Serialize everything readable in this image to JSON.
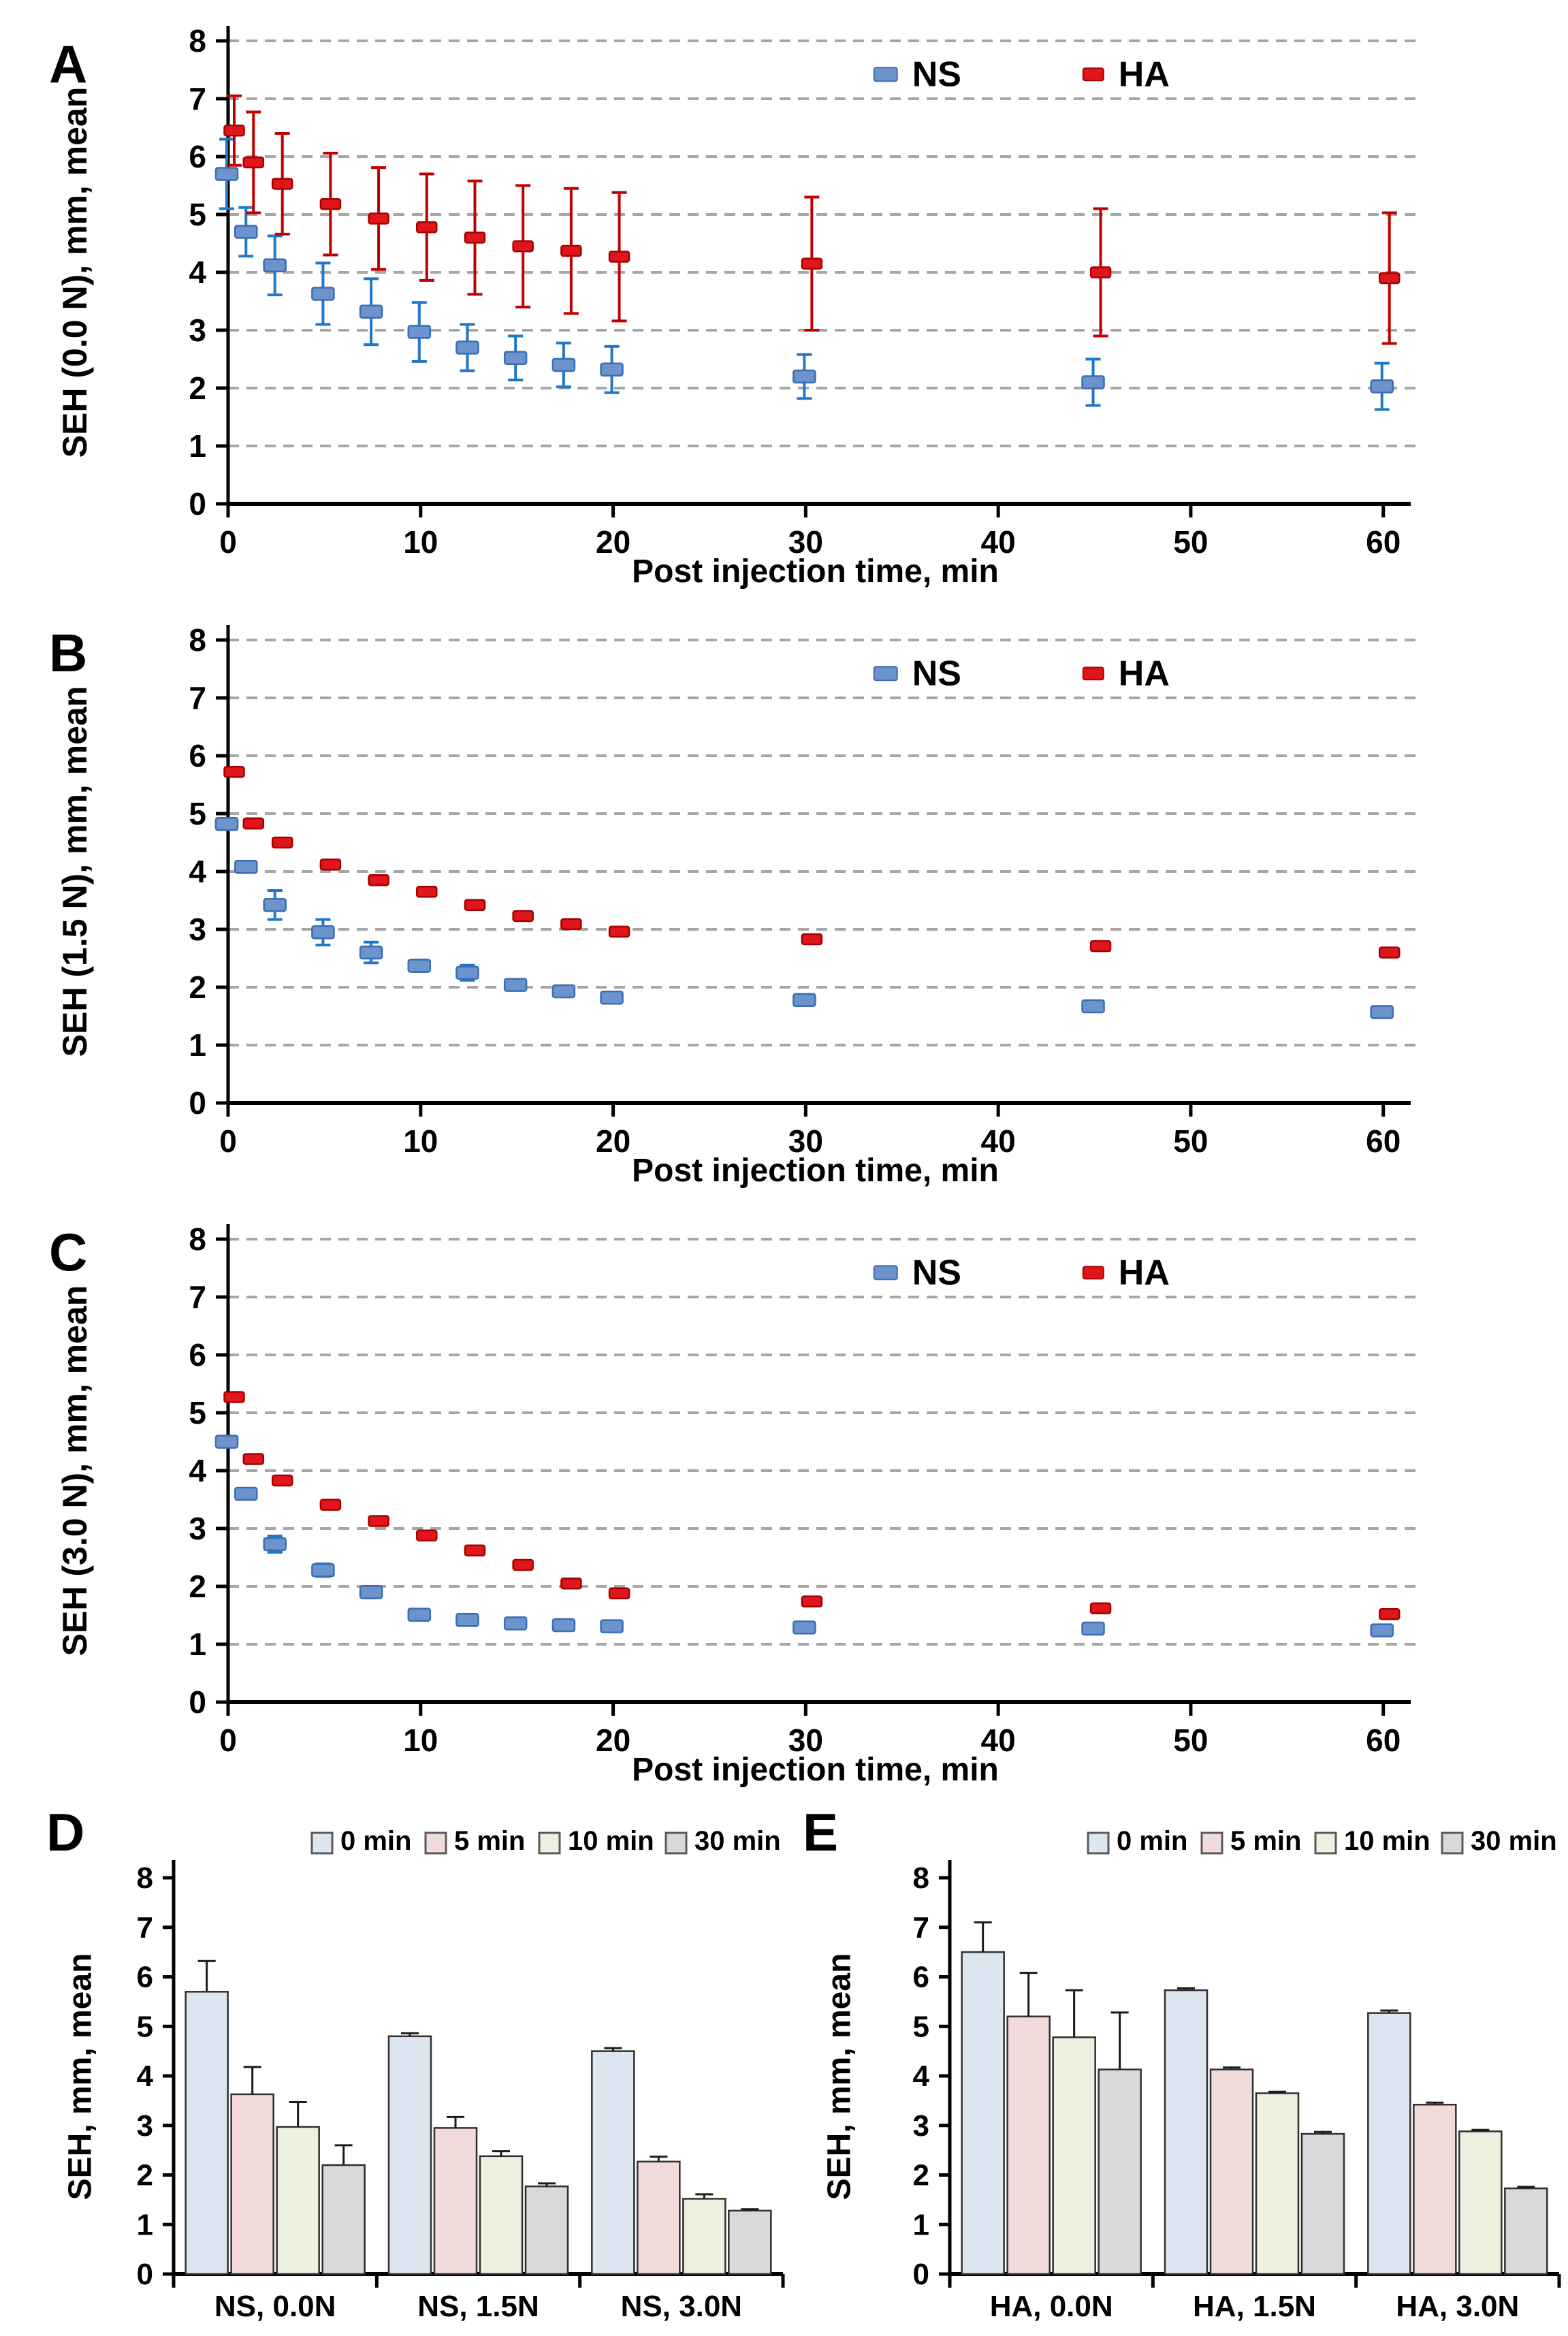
{
  "style": {
    "grid_color": "#a6a6a6",
    "axis_color": "#000000",
    "text_color": "#000000",
    "bar_error_color": "#1a1a1a",
    "bar_edge_color": "#2f2f2f",
    "legend_box_edge": "#595959"
  },
  "chart_data": [
    {
      "panel": "A",
      "type": "scatter",
      "ylabel": "SEH (0.0 N), mm, mean",
      "xlabel": "Post injection time, min",
      "xlim": [
        0,
        61
      ],
      "ylim": [
        0,
        8
      ],
      "xticks": [
        0,
        10,
        20,
        30,
        40,
        50,
        60
      ],
      "yticks": [
        0,
        1,
        2,
        3,
        4,
        5,
        6,
        7,
        8
      ],
      "grid": "horizontal-dashed",
      "legend_position": "top-inside",
      "x": [
        0,
        1,
        2.5,
        5,
        7.5,
        10,
        12.5,
        15,
        17.5,
        20,
        30,
        45,
        60
      ],
      "series": [
        {
          "name": "NS",
          "marker_color": "#6d93cc",
          "marker_edge": "#3a6db5",
          "errorbar_color": "#2077c8",
          "values": [
            5.7,
            4.7,
            4.12,
            3.63,
            3.32,
            2.97,
            2.7,
            2.52,
            2.4,
            2.32,
            2.2,
            2.1,
            2.03
          ],
          "errors": [
            0.6,
            0.42,
            0.51,
            0.53,
            0.57,
            0.51,
            0.4,
            0.38,
            0.38,
            0.4,
            0.38,
            0.4,
            0.4
          ]
        },
        {
          "name": "HA",
          "marker_color": "#e0161d",
          "marker_edge": "#a50000",
          "errorbar_color": "#c00000",
          "values": [
            6.45,
            5.9,
            5.53,
            5.18,
            4.93,
            4.78,
            4.6,
            4.45,
            4.37,
            4.27,
            4.15,
            4.0,
            3.9
          ],
          "errors": [
            0.6,
            0.87,
            0.87,
            0.88,
            0.88,
            0.92,
            0.98,
            1.05,
            1.08,
            1.11,
            1.15,
            1.1,
            1.13
          ]
        }
      ]
    },
    {
      "panel": "B",
      "type": "scatter",
      "ylabel": "SEH (1.5 N), mm, mean",
      "xlabel": "Post injection time, min",
      "xlim": [
        0,
        61
      ],
      "ylim": [
        0,
        8
      ],
      "xticks": [
        0,
        10,
        20,
        30,
        40,
        50,
        60
      ],
      "yticks": [
        0,
        1,
        2,
        3,
        4,
        5,
        6,
        7,
        8
      ],
      "grid": "horizontal-dashed",
      "legend_position": "top-inside",
      "x": [
        0,
        1,
        2.5,
        5,
        7.5,
        10,
        12.5,
        15,
        17.5,
        20,
        30,
        45,
        60
      ],
      "series": [
        {
          "name": "NS",
          "marker_color": "#6d93cc",
          "marker_edge": "#3a6db5",
          "errorbar_color": "#2077c8",
          "values": [
            4.82,
            4.08,
            3.42,
            2.95,
            2.6,
            2.37,
            2.25,
            2.04,
            1.93,
            1.82,
            1.78,
            1.67,
            1.57
          ],
          "errors": [
            0.06,
            0.06,
            0.25,
            0.22,
            0.18,
            0.1,
            0.13,
            0.06,
            0.09,
            0.08,
            0.05,
            0.06,
            0.05
          ]
        },
        {
          "name": "HA",
          "marker_color": "#e0161d",
          "marker_edge": "#a50000",
          "errorbar_color": "#c00000",
          "values": [
            5.72,
            4.83,
            4.5,
            4.12,
            3.85,
            3.65,
            3.42,
            3.23,
            3.09,
            2.96,
            2.83,
            2.71,
            2.6
          ],
          "errors": [
            0.05,
            0.08,
            0.06,
            0.08,
            0.07,
            0.05,
            0.07,
            0.05,
            0.08,
            0.07,
            0.05,
            0.05,
            0.06
          ]
        }
      ]
    },
    {
      "panel": "C",
      "type": "scatter",
      "ylabel": "SEH (3.0 N), mm, mean",
      "xlabel": "Post injection time, min",
      "xlim": [
        0,
        61
      ],
      "ylim": [
        0,
        8
      ],
      "xticks": [
        0,
        10,
        20,
        30,
        40,
        50,
        60
      ],
      "yticks": [
        0,
        1,
        2,
        3,
        4,
        5,
        6,
        7,
        8
      ],
      "grid": "horizontal-dashed",
      "legend_position": "top-inside",
      "x": [
        0,
        1,
        2.5,
        5,
        7.5,
        10,
        12.5,
        15,
        17.5,
        20,
        30,
        45,
        60
      ],
      "series": [
        {
          "name": "NS",
          "marker_color": "#6d93cc",
          "marker_edge": "#3a6db5",
          "errorbar_color": "#2077c8",
          "values": [
            4.5,
            3.6,
            2.73,
            2.28,
            1.9,
            1.51,
            1.42,
            1.36,
            1.33,
            1.31,
            1.29,
            1.27,
            1.24
          ],
          "errors": [
            0.07,
            0.05,
            0.14,
            0.11,
            0.1,
            0.08,
            0.05,
            0.04,
            0.03,
            0.03,
            0.03,
            0.03,
            0.04
          ]
        },
        {
          "name": "HA",
          "marker_color": "#e0161d",
          "marker_edge": "#a50000",
          "errorbar_color": "#c00000",
          "values": [
            5.27,
            4.2,
            3.83,
            3.41,
            3.13,
            2.88,
            2.62,
            2.37,
            2.05,
            1.88,
            1.74,
            1.62,
            1.52
          ],
          "errors": [
            0.05,
            0.07,
            0.05,
            0.06,
            0.06,
            0.05,
            0.06,
            0.05,
            0.04,
            0.05,
            0.05,
            0.04,
            0.05
          ]
        }
      ]
    },
    {
      "panel": "D",
      "type": "bar",
      "ylabel": "SEH, mm, mean",
      "ylim": [
        0,
        8
      ],
      "yticks": [
        0,
        1,
        2,
        3,
        4,
        5,
        6,
        7,
        8
      ],
      "grid": "none",
      "legend_position": "top",
      "categories": [
        "NS, 0.0N",
        "NS, 1.5N",
        "NS, 3.0N"
      ],
      "series": [
        {
          "name": "0 min",
          "fill": "#dce6f1",
          "values": [
            5.7,
            4.8,
            4.5
          ],
          "errors": [
            0.62,
            0.06,
            0.06
          ]
        },
        {
          "name": "5 min",
          "fill": "#f2dcdb",
          "values": [
            3.63,
            2.95,
            2.27
          ],
          "errors": [
            0.55,
            0.22,
            0.1
          ]
        },
        {
          "name": "10 min",
          "fill": "#ebf1de",
          "values": [
            2.97,
            2.38,
            1.52
          ],
          "errors": [
            0.5,
            0.1,
            0.09
          ]
        },
        {
          "name": "30 min",
          "fill": "#d9d9d9",
          "values": [
            2.2,
            1.77,
            1.28
          ],
          "errors": [
            0.4,
            0.06,
            0.03
          ]
        }
      ]
    },
    {
      "panel": "E",
      "type": "bar",
      "ylabel": "SEH, mm, mean",
      "ylim": [
        0,
        8
      ],
      "yticks": [
        0,
        1,
        2,
        3,
        4,
        5,
        6,
        7,
        8
      ],
      "grid": "none",
      "legend_position": "top",
      "categories": [
        "HA, 0.0N",
        "HA, 1.5N",
        "HA, 3.0N"
      ],
      "series": [
        {
          "name": "0 min",
          "fill": "#dce6f1",
          "values": [
            6.5,
            5.73,
            5.27
          ],
          "errors": [
            0.6,
            0.04,
            0.05
          ]
        },
        {
          "name": "5 min",
          "fill": "#f2dcdb",
          "values": [
            5.2,
            4.13,
            3.42
          ],
          "errors": [
            0.88,
            0.04,
            0.04
          ]
        },
        {
          "name": "10 min",
          "fill": "#ebf1de",
          "values": [
            4.78,
            3.65,
            2.88
          ],
          "errors": [
            0.95,
            0.03,
            0.03
          ]
        },
        {
          "name": "30 min",
          "fill": "#d9d9d9",
          "values": [
            4.13,
            2.83,
            1.73
          ],
          "errors": [
            1.15,
            0.04,
            0.03
          ]
        }
      ]
    }
  ]
}
